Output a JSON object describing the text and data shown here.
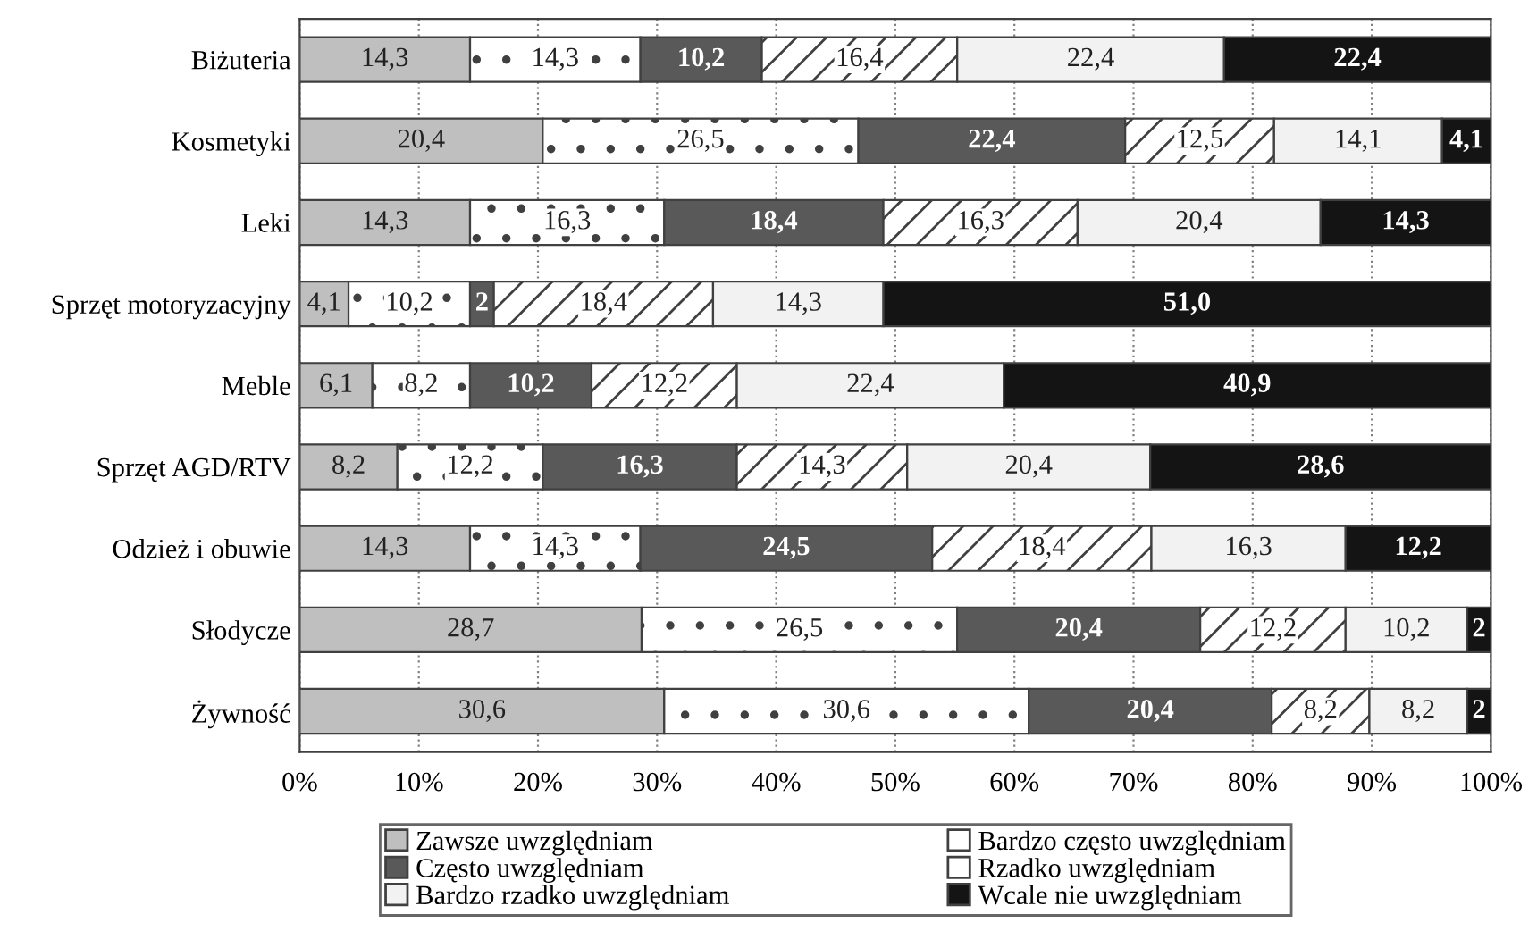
{
  "chart_data": {
    "type": "bar",
    "orientation": "horizontal",
    "stacked": true,
    "categories": [
      "Biżuteria",
      "Kosmetyki",
      "Leki",
      "Sprzęt motoryzacyjny",
      "Meble",
      "Sprzęt AGD/RTV",
      "Odzież i obuwie",
      "Słodycze",
      "Żywność"
    ],
    "series": [
      {
        "name": "Zawsze uwzględniam",
        "color": "#bfbfbf",
        "values": [
          14.3,
          20.4,
          14.3,
          4.1,
          6.1,
          8.2,
          14.3,
          28.7,
          30.6
        ],
        "value_labels": [
          "14,3",
          "20,4",
          "14,3",
          "4,1",
          "6,1",
          "8,2",
          "14,3",
          "28,7",
          "30,6"
        ]
      },
      {
        "name": "Bardzo często uwzględniam",
        "color": "#ffffff",
        "values": [
          14.3,
          26.5,
          16.3,
          10.2,
          8.2,
          12.2,
          14.3,
          26.5,
          30.6
        ],
        "value_labels": [
          "14,3",
          "26,5",
          "16,3",
          "10,2",
          "8,2",
          "12,2",
          "14,3",
          "26,5",
          "30,6"
        ]
      },
      {
        "name": "Często uwzględniam",
        "color": "#595959",
        "values": [
          10.2,
          22.4,
          18.4,
          2,
          10.2,
          16.3,
          24.5,
          20.4,
          20.4
        ],
        "value_labels": [
          "10,2",
          "22,4",
          "18,4",
          "2",
          "10,2",
          "16,3",
          "24,5",
          "20,4",
          "20,4"
        ]
      },
      {
        "name": "Rzadko uwzględniam",
        "color": "#ffffff",
        "values": [
          16.4,
          12.5,
          16.3,
          18.4,
          12.2,
          14.3,
          18.4,
          12.2,
          8.2
        ],
        "value_labels": [
          "16,4",
          "12,5",
          "16,3",
          "18,4",
          "12,2",
          "14,3",
          "18,4",
          "12,2",
          "8,2"
        ]
      },
      {
        "name": "Bardzo rzadko uwzględniam",
        "color": "#f2f2f2",
        "values": [
          22.4,
          14.1,
          20.4,
          14.3,
          22.4,
          20.4,
          16.3,
          10.2,
          8.2
        ],
        "value_labels": [
          "22,4",
          "14,1",
          "20,4",
          "14,3",
          "22,4",
          "20,4",
          "16,3",
          "10,2",
          "8,2"
        ]
      },
      {
        "name": "Wcale nie uwzględniam",
        "color": "#141414",
        "values": [
          22.4,
          4.1,
          14.3,
          51.0,
          40.9,
          28.6,
          12.2,
          2,
          2
        ],
        "value_labels": [
          "22,4",
          "4,1",
          "14,3",
          "51,0",
          "40,9",
          "28,6",
          "12,2",
          "2",
          "2"
        ]
      }
    ],
    "xlim": [
      0,
      100
    ],
    "xticks": [
      {
        "value": 0,
        "label": "0%"
      },
      {
        "value": 10,
        "label": "10%"
      },
      {
        "value": 20,
        "label": "20%"
      },
      {
        "value": 30,
        "label": "30%"
      },
      {
        "value": 40,
        "label": "40%"
      },
      {
        "value": 50,
        "label": "50%"
      },
      {
        "value": 60,
        "label": "60%"
      },
      {
        "value": 70,
        "label": "70%"
      },
      {
        "value": 80,
        "label": "80%"
      },
      {
        "value": 90,
        "label": "90%"
      },
      {
        "value": 100,
        "label": "100%"
      }
    ],
    "grid": "x",
    "legend": "bottom"
  }
}
